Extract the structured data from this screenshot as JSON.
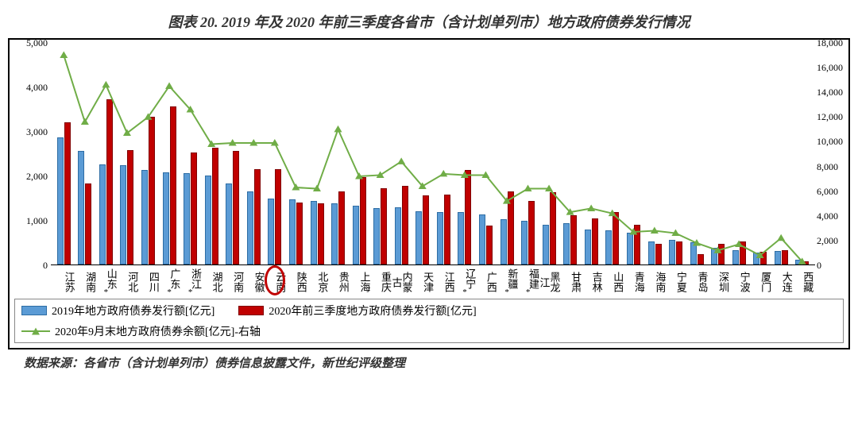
{
  "title": "图表 20. 2019 年及 2020 年前三季度各省市（含计划单列市）地方政府债券发行情况",
  "source": "数据来源：各省市（含计划单列市）债券信息披露文件，新世纪评级整理",
  "legend": {
    "s1": "2019年地方政府债券发行额[亿元]",
    "s2": "2020年前三季度地方政府债券发行额[亿元]",
    "s3": "2020年9月末地方政府债券余额[亿元]-右轴"
  },
  "left_axis": {
    "min": 0,
    "max": 5000,
    "step": 1000
  },
  "right_axis": {
    "min": 0,
    "max": 18000,
    "step": 2000
  },
  "colors": {
    "bar_2019_fill": "#5b9bd5",
    "bar_2019_border": "#2e6da4",
    "bar_2020_fill": "#c00000",
    "bar_2020_border": "#800000",
    "line_fill": "#70ad47",
    "circle": "#c00000",
    "background": "#ffffff",
    "text": "#000000"
  },
  "highlight_index": 10,
  "categories": [
    {
      "label": "江苏",
      "star": false,
      "v2019": 2850,
      "v2020": 3200,
      "balance": 17000
    },
    {
      "label": "湖南",
      "star": false,
      "v2019": 2560,
      "v2020": 1830,
      "balance": 11600
    },
    {
      "label": "山东",
      "star": true,
      "v2019": 2250,
      "v2020": 3720,
      "balance": 14600
    },
    {
      "label": "河北",
      "star": false,
      "v2019": 2240,
      "v2020": 2580,
      "balance": 10700
    },
    {
      "label": "四川",
      "star": false,
      "v2019": 2130,
      "v2020": 3320,
      "balance": 12000
    },
    {
      "label": "广东",
      "star": true,
      "v2019": 2070,
      "v2020": 3550,
      "balance": 14500
    },
    {
      "label": "浙江",
      "star": true,
      "v2019": 2050,
      "v2020": 2520,
      "balance": 12600
    },
    {
      "label": "湖北",
      "star": false,
      "v2019": 2000,
      "v2020": 2620,
      "balance": 9800
    },
    {
      "label": "河南",
      "star": false,
      "v2019": 1830,
      "v2020": 2550,
      "balance": 9900
    },
    {
      "label": "安徽",
      "star": false,
      "v2019": 1640,
      "v2020": 2150,
      "balance": 9900
    },
    {
      "label": "云南",
      "star": false,
      "v2019": 1490,
      "v2020": 2150,
      "balance": 9900
    },
    {
      "label": "陕西",
      "star": false,
      "v2019": 1460,
      "v2020": 1400,
      "balance": 6300
    },
    {
      "label": "北京",
      "star": false,
      "v2019": 1430,
      "v2020": 1380,
      "balance": 6200
    },
    {
      "label": "贵州",
      "star": false,
      "v2019": 1380,
      "v2020": 1640,
      "balance": 11000
    },
    {
      "label": "上海",
      "star": false,
      "v2019": 1320,
      "v2020": 1970,
      "balance": 7200
    },
    {
      "label": "重庆",
      "star": false,
      "v2019": 1270,
      "v2020": 1720,
      "balance": 7300
    },
    {
      "label": "内蒙古",
      "star": false,
      "v2019": 1280,
      "v2020": 1760,
      "balance": 8400
    },
    {
      "label": "天津",
      "star": false,
      "v2019": 1200,
      "v2020": 1550,
      "balance": 6400
    },
    {
      "label": "江西",
      "star": false,
      "v2019": 1180,
      "v2020": 1570,
      "balance": 7400
    },
    {
      "label": "辽宁",
      "star": true,
      "v2019": 1170,
      "v2020": 2130,
      "balance": 7300
    },
    {
      "label": "广西",
      "star": false,
      "v2019": 1120,
      "v2020": 880,
      "balance": 7300
    },
    {
      "label": "新疆",
      "star": true,
      "v2019": 1020,
      "v2020": 1650,
      "balance": 5200
    },
    {
      "label": "福建",
      "star": true,
      "v2019": 980,
      "v2020": 1420,
      "balance": 6200
    },
    {
      "label": "黑龙江",
      "star": false,
      "v2019": 900,
      "v2020": 1620,
      "balance": 6200
    },
    {
      "label": "甘肃",
      "star": false,
      "v2019": 920,
      "v2020": 1100,
      "balance": 4300
    },
    {
      "label": "吉林",
      "star": false,
      "v2019": 780,
      "v2020": 1040,
      "balance": 4600
    },
    {
      "label": "山西",
      "star": false,
      "v2019": 760,
      "v2020": 1170,
      "balance": 4200
    },
    {
      "label": "青海",
      "star": false,
      "v2019": 720,
      "v2020": 890,
      "balance": 2700
    },
    {
      "label": "海南",
      "star": false,
      "v2019": 510,
      "v2020": 470,
      "balance": 2800
    },
    {
      "label": "宁夏",
      "star": false,
      "v2019": 560,
      "v2020": 510,
      "balance": 2600
    },
    {
      "label": "青岛",
      "star": false,
      "v2019": 500,
      "v2020": 230,
      "balance": 1800
    },
    {
      "label": "深圳",
      "star": false,
      "v2019": 380,
      "v2020": 470,
      "balance": 1200
    },
    {
      "label": "宁波",
      "star": false,
      "v2019": 320,
      "v2020": 510,
      "balance": 1700
    },
    {
      "label": "厦门",
      "star": false,
      "v2019": 270,
      "v2020": 290,
      "balance": 800
    },
    {
      "label": "大连",
      "star": false,
      "v2019": 300,
      "v2020": 320,
      "balance": 2200
    },
    {
      "label": "西藏",
      "star": false,
      "v2019": 100,
      "v2020": 80,
      "balance": 300
    }
  ]
}
